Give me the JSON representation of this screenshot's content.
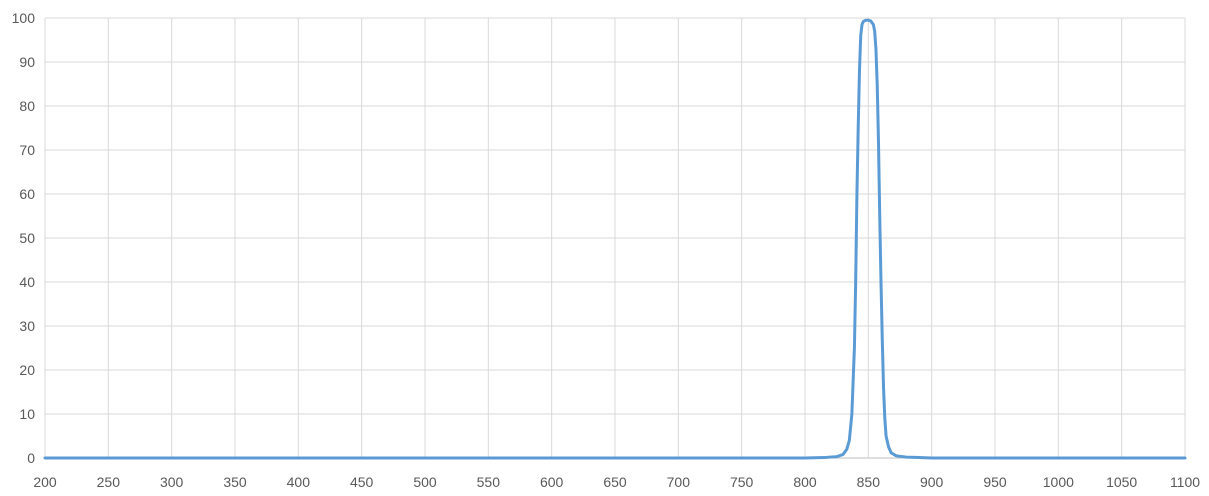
{
  "chart_data": {
    "type": "line",
    "title": "",
    "xlabel": "",
    "ylabel": "",
    "xlim": [
      200,
      1100
    ],
    "ylim": [
      0,
      100
    ],
    "x_ticks": [
      200,
      250,
      300,
      350,
      400,
      450,
      500,
      550,
      600,
      650,
      700,
      750,
      800,
      850,
      900,
      950,
      1000,
      1050,
      1100
    ],
    "y_ticks": [
      0,
      10,
      20,
      30,
      40,
      50,
      60,
      70,
      80,
      90,
      100
    ],
    "grid": true,
    "legend": "none",
    "series": [
      {
        "color": "#5b9bd5",
        "points": [
          [
            200,
            0
          ],
          [
            700,
            0
          ],
          [
            800,
            0
          ],
          [
            815,
            0.1
          ],
          [
            825,
            0.3
          ],
          [
            830,
            0.8
          ],
          [
            833,
            2
          ],
          [
            835,
            4
          ],
          [
            837,
            10
          ],
          [
            839,
            25
          ],
          [
            840,
            40
          ],
          [
            841,
            60
          ],
          [
            842,
            75
          ],
          [
            843,
            88
          ],
          [
            844,
            96
          ],
          [
            845,
            98.5
          ],
          [
            846,
            99.2
          ],
          [
            848,
            99.5
          ],
          [
            850,
            99.5
          ],
          [
            852,
            99.3
          ],
          [
            854,
            98.5
          ],
          [
            855,
            97
          ],
          [
            856,
            93
          ],
          [
            857,
            85
          ],
          [
            858,
            72
          ],
          [
            859,
            55
          ],
          [
            860,
            40
          ],
          [
            861,
            27
          ],
          [
            862,
            16
          ],
          [
            863,
            9
          ],
          [
            864,
            5
          ],
          [
            866,
            2.5
          ],
          [
            868,
            1.2
          ],
          [
            872,
            0.5
          ],
          [
            880,
            0.2
          ],
          [
            890,
            0.1
          ],
          [
            900,
            0
          ],
          [
            1000,
            0
          ],
          [
            1100,
            0
          ]
        ]
      }
    ]
  }
}
